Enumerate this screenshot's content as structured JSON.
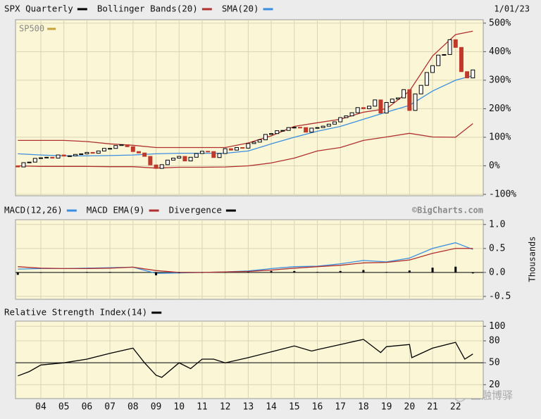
{
  "chart_data": [
    {
      "type": "candlestick",
      "date": "1/01/23",
      "inner_label": "SP500",
      "inner_label_color": "#c8a040",
      "up_color": "#ffffff",
      "down_color": "#c0392b",
      "xlim": [
        2002.9,
        2023.2
      ],
      "ylim": [
        -105,
        512
      ],
      "yticks": [
        {
          "value": 500,
          "label": "500%"
        },
        {
          "value": 400,
          "label": "400%"
        },
        {
          "value": 300,
          "label": "300%"
        },
        {
          "value": 200,
          "label": "200%"
        },
        {
          "value": 100,
          "label": "100%"
        },
        {
          "value": 0,
          "label": "0%"
        },
        {
          "value": -100,
          "label": "-100%"
        }
      ],
      "grid": true,
      "x": [
        2003,
        2003.25,
        2003.5,
        2003.75,
        2004,
        2004.25,
        2004.5,
        2004.75,
        2005,
        2005.25,
        2005.5,
        2005.75,
        2006,
        2006.25,
        2006.5,
        2006.75,
        2007,
        2007.25,
        2007.5,
        2007.75,
        2008,
        2008.25,
        2008.5,
        2008.75,
        2009,
        2009.25,
        2009.5,
        2009.75,
        2010,
        2010.25,
        2010.5,
        2010.75,
        2011,
        2011.25,
        2011.5,
        2011.75,
        2012,
        2012.25,
        2012.5,
        2012.75,
        2013,
        2013.25,
        2013.5,
        2013.75,
        2014,
        2014.25,
        2014.5,
        2014.75,
        2015,
        2015.25,
        2015.5,
        2015.75,
        2016,
        2016.25,
        2016.5,
        2016.75,
        2017,
        2017.25,
        2017.5,
        2017.75,
        2018,
        2018.25,
        2018.5,
        2018.75,
        2019,
        2019.25,
        2019.5,
        2019.75,
        2020,
        2020.25,
        2020.5,
        2020.75,
        2021,
        2021.25,
        2021.5,
        2021.75,
        2022,
        2022.25,
        2022.5,
        2022.75
      ],
      "series": [
        {
          "name": "SPX Quarterly",
          "color": "#000000",
          "open": [
            0,
            -4,
            11,
            13,
            26,
            28,
            30,
            27,
            38,
            34,
            35,
            40,
            42,
            47,
            44,
            52,
            61,
            61,
            71,
            74,
            67,
            50,
            45,
            33,
            3,
            -9,
            4,
            20,
            27,
            33,
            17,
            30,
            43,
            51,
            50,
            29,
            43,
            60,
            55,
            64,
            62,
            78,
            83,
            91,
            110,
            113,
            123,
            124,
            134,
            135,
            134,
            118,
            132,
            134,
            139,
            146,
            154,
            169,
            175,
            186,
            204,
            200,
            209,
            231,
            185,
            222,
            234,
            238,
            267,
            194,
            252,
            282,
            327,
            351,
            388,
            390,
            442,
            415,
            330,
            308
          ],
          "close": [
            -4,
            11,
            13,
            26,
            28,
            30,
            27,
            38,
            34,
            35,
            40,
            42,
            47,
            44,
            52,
            61,
            61,
            71,
            74,
            67,
            50,
            45,
            33,
            3,
            -9,
            4,
            20,
            27,
            33,
            17,
            30,
            43,
            51,
            50,
            29,
            43,
            60,
            55,
            64,
            62,
            78,
            83,
            91,
            110,
            113,
            123,
            124,
            134,
            135,
            134,
            118,
            132,
            134,
            139,
            146,
            154,
            169,
            175,
            186,
            204,
            200,
            209,
            231,
            185,
            222,
            234,
            238,
            267,
            194,
            252,
            282,
            327,
            351,
            388,
            390,
            442,
            415,
            330,
            308,
            336
          ]
        },
        {
          "name": "Bollinger Bands(20)",
          "color": "#b03030",
          "x": [
            2003,
            2004,
            2005,
            2006,
            2007,
            2008,
            2009,
            2010,
            2011,
            2012,
            2013,
            2014,
            2015,
            2016,
            2017,
            2018,
            2019,
            2020,
            2021,
            2022,
            2022.75
          ],
          "upper": [
            89,
            89,
            89,
            85,
            77,
            72,
            64,
            64,
            64,
            64,
            80,
            105,
            138,
            151,
            163,
            188,
            200,
            262,
            385,
            460,
            472
          ],
          "lower": [
            0,
            -2,
            -2,
            -2,
            -3,
            -3,
            -8,
            -5,
            -5,
            -4,
            0,
            10,
            27,
            52,
            64,
            89,
            101,
            114,
            101,
            100,
            148
          ]
        },
        {
          "name": "SMA(20)",
          "color": "#3a8ee0",
          "x": [
            2003,
            2004,
            2005,
            2006,
            2007,
            2008,
            2009,
            2010,
            2011,
            2012,
            2013,
            2014,
            2015,
            2016,
            2017,
            2018,
            2019,
            2020,
            2021,
            2022,
            2022.75
          ],
          "values": [
            42,
            38,
            35,
            35,
            36,
            38,
            42,
            44,
            44,
            44,
            52,
            77,
            100,
            121,
            138,
            163,
            188,
            212,
            262,
            300,
            316
          ]
        }
      ]
    },
    {
      "type": "line",
      "credit": "©BigCharts.com",
      "y_axis_label": "Thousands",
      "xlim": [
        2002.9,
        2023.2
      ],
      "ylim": [
        -0.56,
        1.1
      ],
      "yticks": [
        {
          "value": 1,
          "label": "1.0"
        },
        0.5,
        {
          "value": 0,
          "label": "0.0"
        },
        -0.5
      ],
      "grid": true,
      "reference": 0,
      "x": [
        2003,
        2004,
        2005,
        2006,
        2007,
        2008,
        2009,
        2010,
        2011,
        2012,
        2013,
        2014,
        2015,
        2016,
        2017,
        2018,
        2019,
        2020,
        2021,
        2022,
        2022.75
      ],
      "series": [
        {
          "name": "MACD(12,26)",
          "color": "#3a8ee0",
          "values": [
            0.07,
            0.08,
            0.08,
            0.09,
            0.1,
            0.11,
            -0.02,
            -0.01,
            0,
            0.01,
            0.03,
            0.08,
            0.12,
            0.13,
            0.18,
            0.25,
            0.22,
            0.3,
            0.5,
            0.62,
            0.48
          ]
        },
        {
          "name": "MACD EMA(9)",
          "color": "#b03030",
          "values": [
            0.12,
            0.09,
            0.08,
            0.08,
            0.09,
            0.11,
            0.04,
            0,
            0,
            0.01,
            0.02,
            0.05,
            0.09,
            0.12,
            0.15,
            0.2,
            0.21,
            0.26,
            0.4,
            0.5,
            0.5
          ]
        },
        {
          "name": "Divergence",
          "color": "#000000",
          "style": "bar",
          "values": [
            -0.05,
            -0.01,
            0,
            0.01,
            0.01,
            0,
            -0.06,
            -0.01,
            0,
            0,
            0.01,
            0.03,
            0.03,
            0.01,
            0.03,
            0.05,
            0.01,
            0.04,
            0.1,
            0.12,
            -0.02
          ]
        }
      ]
    },
    {
      "type": "line",
      "xlim": [
        2002.9,
        2023.2
      ],
      "ylim": [
        1,
        107
      ],
      "yticks": [
        100,
        80,
        50,
        20
      ],
      "grid": true,
      "reference": 50,
      "xticks": [
        {
          "value": 2004,
          "label": "04"
        },
        {
          "value": 2005,
          "label": "05"
        },
        {
          "value": 2006,
          "label": "06"
        },
        {
          "value": 2007,
          "label": "07"
        },
        {
          "value": 2008,
          "label": "08"
        },
        {
          "value": 2009,
          "label": "09"
        },
        {
          "value": 2010,
          "label": "10"
        },
        {
          "value": 2011,
          "label": "11"
        },
        {
          "value": 2012,
          "label": "12"
        },
        {
          "value": 2013,
          "label": "13"
        },
        {
          "value": 2014,
          "label": "14"
        },
        {
          "value": 2015,
          "label": "15"
        },
        {
          "value": 2016,
          "label": "16"
        },
        {
          "value": 2017,
          "label": "17"
        },
        {
          "value": 2018,
          "label": "18"
        },
        {
          "value": 2019,
          "label": "19"
        },
        {
          "value": 2020,
          "label": "20"
        },
        {
          "value": 2021,
          "label": "21"
        },
        {
          "value": 2022,
          "label": "22"
        }
      ],
      "x": [
        2003,
        2003.5,
        2004,
        2005,
        2006,
        2007,
        2008,
        2008.5,
        2009,
        2009.25,
        2010,
        2010.5,
        2011,
        2011.5,
        2012,
        2013,
        2014,
        2015,
        2015.75,
        2016,
        2017,
        2018,
        2018.75,
        2019,
        2020,
        2020.1,
        2021,
        2022,
        2022.4,
        2022.75
      ],
      "series": [
        {
          "name": "Relative Strength Index(14)",
          "color": "#000000",
          "values": [
            32,
            38,
            47,
            50,
            55,
            63,
            70,
            50,
            33,
            30,
            50,
            42,
            55,
            55,
            50,
            57,
            65,
            73,
            66,
            68,
            75,
            82,
            64,
            72,
            75,
            57,
            70,
            78,
            55,
            62
          ]
        }
      ]
    }
  ],
  "watermark": "金融博驿"
}
